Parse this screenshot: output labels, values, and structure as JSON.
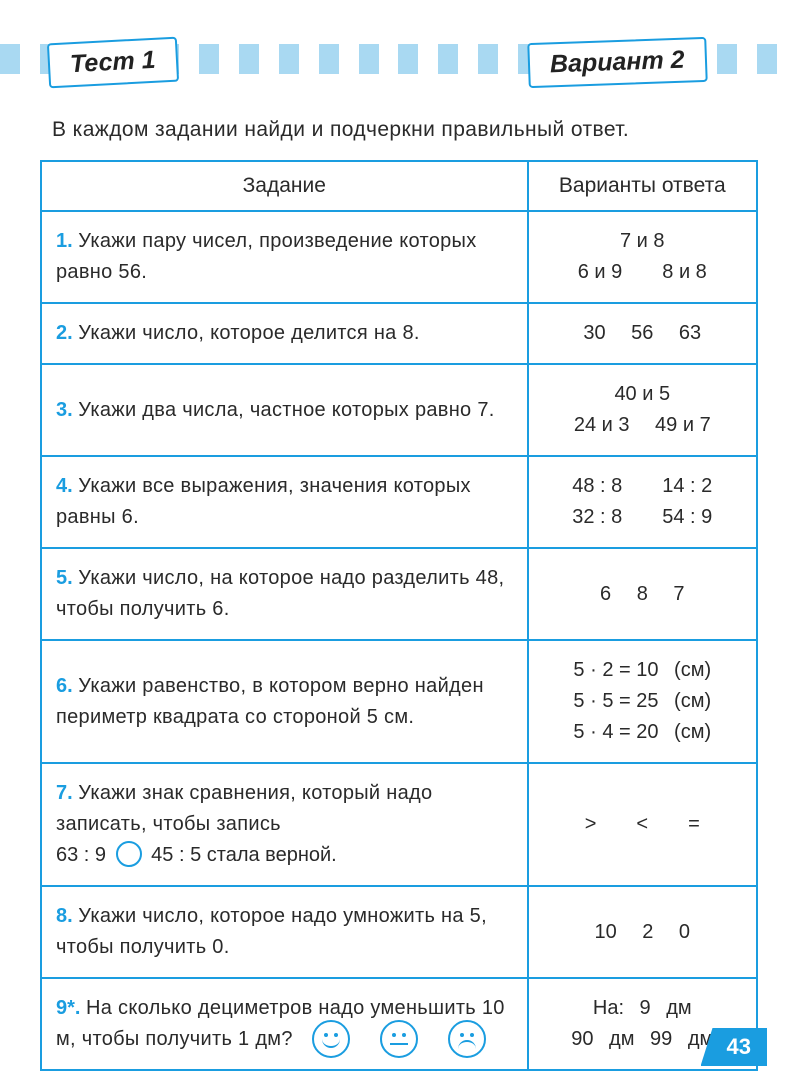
{
  "colors": {
    "accent": "#1a9de0",
    "stripe_light": "#a9d9f2",
    "text": "#2a2a2a",
    "background": "#ffffff"
  },
  "header": {
    "test_label": "Тест 1",
    "variant_label": "Вариант 2"
  },
  "intro": "В каждом задании найди и подчеркни правильный ответ.",
  "table": {
    "head_task": "Задание",
    "head_answers": "Варианты ответа",
    "rows": [
      {
        "num": "1.",
        "text": "Укажи пару чисел, произведение которых равно 56.",
        "answers": "7 и 8\n6 и 9  8 и 8"
      },
      {
        "num": "2.",
        "text": "Укажи число, которое делится на 8.",
        "answers": "30  56  63"
      },
      {
        "num": "3.",
        "text": "Укажи два числа, частное которых равно 7.",
        "answers": "40 и 5\n24 и 3  49 и 7"
      },
      {
        "num": "4.",
        "text": "Укажи все выражения, значения которых равны 6.",
        "answers": "48 : 8  14 : 2\n32 : 8  54 : 9"
      },
      {
        "num": "5.",
        "text": "Укажи число, на которое надо разделить 48, чтобы получить 6.",
        "answers": "6  8  7"
      },
      {
        "num": "6.",
        "text": "Укажи равенство, в котором верно найден периметр квадрата со стороной 5 см.",
        "answers": "5 · 2 = 10  (см)\n5 · 5 = 25  (см)\n5 · 4 = 20  (см)"
      },
      {
        "num": "7.",
        "text_pre": "Укажи знак сравнения, который надо записать, чтобы запись",
        "expr_left": "63 : 9",
        "expr_right": "45 : 5 стала верной.",
        "answers": ">  <  ="
      },
      {
        "num": "8.",
        "text": "Укажи число, которое надо умножить на 5, чтобы получить 0.",
        "answers": "10  2  0"
      },
      {
        "num": "9*.",
        "text": "На сколько дециметров надо уменьшить 10 м, чтобы получить 1 дм?",
        "answers": "На:  9  дм\n90  дм  99  дм"
      }
    ]
  },
  "page_number": "43"
}
